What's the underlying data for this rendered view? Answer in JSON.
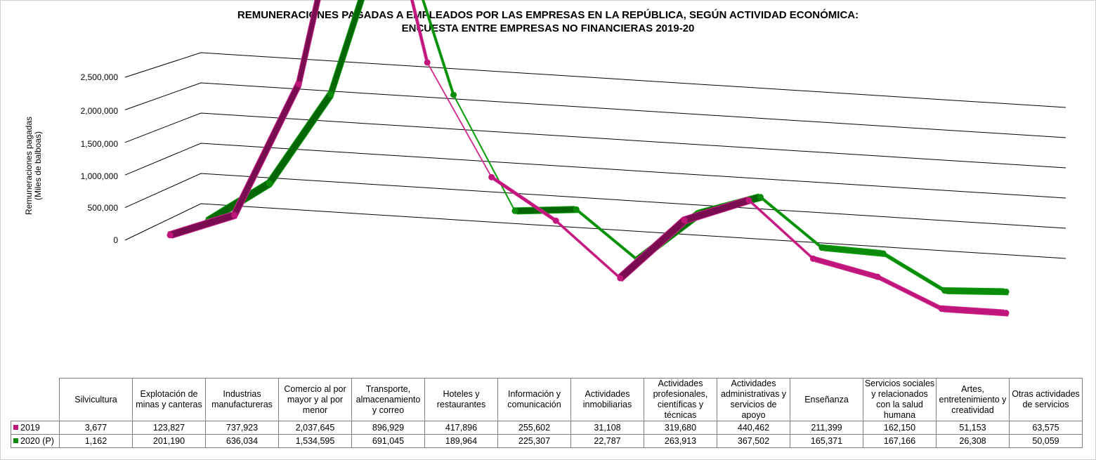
{
  "chart_data": {
    "type": "line",
    "title_lines": [
      "REMUNERACIONES PAGADAS A EMPLEADOS POR LAS EMPRESAS EN LA REPÚBLICA, SEGÚN ACTIVIDAD ECONÓMICA:",
      "ENCUESTA ENTRE EMPRESAS NO FINANCIERAS 2019-20"
    ],
    "ylabel_lines": [
      "Remuneraciones pagadas",
      "(Miles de balboas)"
    ],
    "yticks": [
      "0",
      "500,000",
      "1,000,000",
      "1,500,000",
      "2,000,000",
      "2,500,000"
    ],
    "ylim": [
      0,
      2500000
    ],
    "categories": [
      "Silvicultura",
      "Explotación de minas y canteras",
      "Industrias manufactureras",
      "Comercio al por mayor y al por menor",
      "Transporte, almacenamiento y correo",
      "Hoteles y restaurantes",
      "Información y comunicación",
      "Actividades inmobiliarias",
      "Actividades profesionales, científicas y técnicas",
      "Actividades administrativas y servicios de apoyo",
      "Enseñanza",
      "Servicios sociales y relacionados con la salud humana",
      "Artes, entretenimiento y creatividad",
      "Otras actividades de servicios"
    ],
    "series": [
      {
        "name": "2019",
        "color": "#c0157a",
        "values": [
          3677,
          123827,
          737923,
          2037645,
          896929,
          417896,
          255602,
          31108,
          319680,
          440462,
          211399,
          162150,
          51153,
          63575
        ],
        "labels": [
          "3,677",
          "123,827",
          "737,923",
          "2,037,645",
          "896,929",
          "417,896",
          "255,602",
          "31,108",
          "319,680",
          "440,462",
          "211,399",
          "162,150",
          "51,153",
          "63,575"
        ]
      },
      {
        "name": "2020 (P)",
        "color": "#0a8c0a",
        "values": [
          1162,
          201190,
          636034,
          1534595,
          691045,
          189964,
          225307,
          22787,
          263913,
          367502,
          165371,
          167166,
          26308,
          50059
        ],
        "labels": [
          "1,162",
          "201,190",
          "636,034",
          "1,534,595",
          "691,045",
          "189,964",
          "225,307",
          "22,787",
          "263,913",
          "367,502",
          "165,371",
          "167,166",
          "26,308",
          "50,059"
        ]
      }
    ]
  }
}
